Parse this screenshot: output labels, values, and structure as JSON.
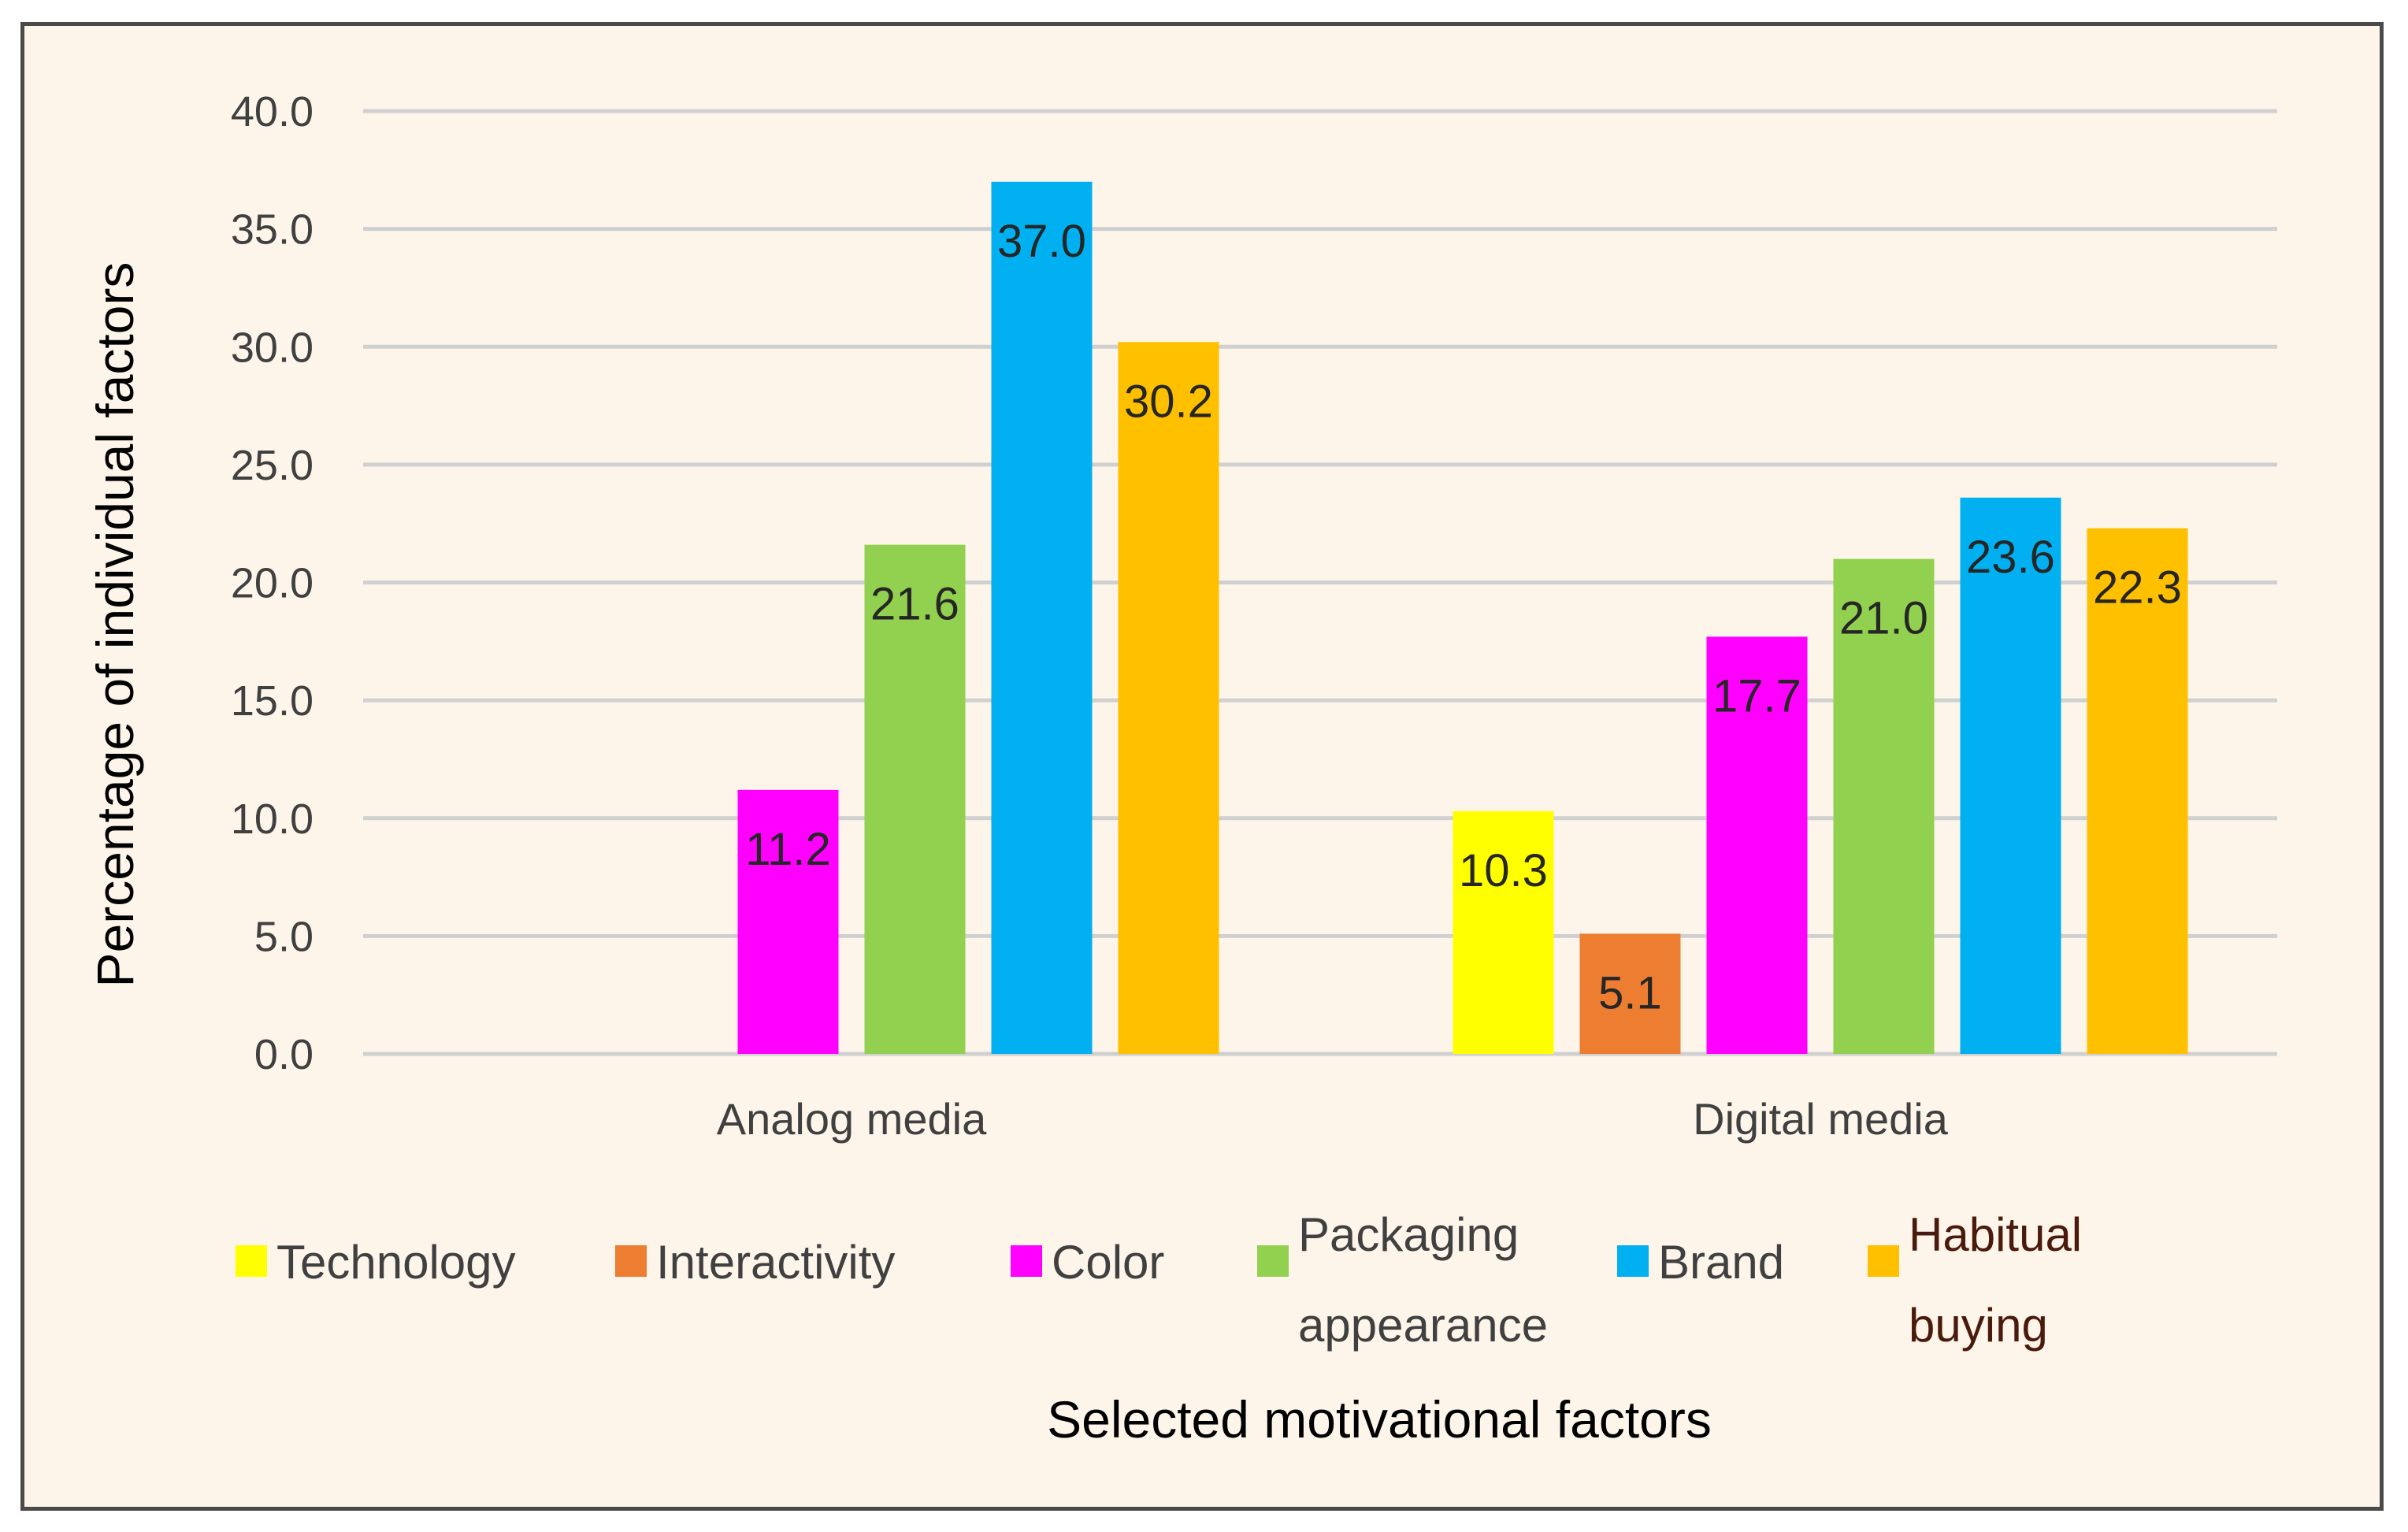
{
  "chart_data": {
    "type": "bar",
    "categories": [
      "Analog media",
      "Digital media"
    ],
    "series": [
      {
        "name": "Technology",
        "color": "#ffff00",
        "values": [
          null,
          10.3
        ]
      },
      {
        "name": "Interactivity",
        "color": "#ed7d31",
        "values": [
          null,
          5.1
        ]
      },
      {
        "name": "Color",
        "color": "#ff00ff",
        "values": [
          11.2,
          17.7
        ]
      },
      {
        "name": "Packaging appearance",
        "color": "#92d050",
        "values": [
          21.6,
          21.0
        ]
      },
      {
        "name": "Brand",
        "color": "#00b0f0",
        "values": [
          37.0,
          23.6
        ]
      },
      {
        "name": "Habitual buying",
        "color": "#ffc000",
        "values": [
          30.2,
          22.3
        ]
      }
    ],
    "data_labels": [
      [
        "",
        "",
        "11.2",
        "21.6",
        "37.0",
        "30.2"
      ],
      [
        "10.3",
        "5.1",
        "17.7",
        "21.0",
        "23.6",
        "22.3"
      ]
    ],
    "legend_lines": [
      [
        "Technology"
      ],
      [
        "Interactivity"
      ],
      [
        "Color"
      ],
      [
        "Packaging",
        "appearance"
      ],
      [
        "Brand"
      ],
      [
        "Habitual",
        "buying"
      ]
    ],
    "y_ticks": [
      "0.0",
      "5.0",
      "10.0",
      "15.0",
      "20.0",
      "25.0",
      "30.0",
      "35.0",
      "40.0"
    ],
    "ylim": [
      0,
      40
    ],
    "ylabel": "Percentage of individual factors",
    "xlabel": "Selected motivational factors",
    "grid": true,
    "legend_position": "bottom"
  }
}
